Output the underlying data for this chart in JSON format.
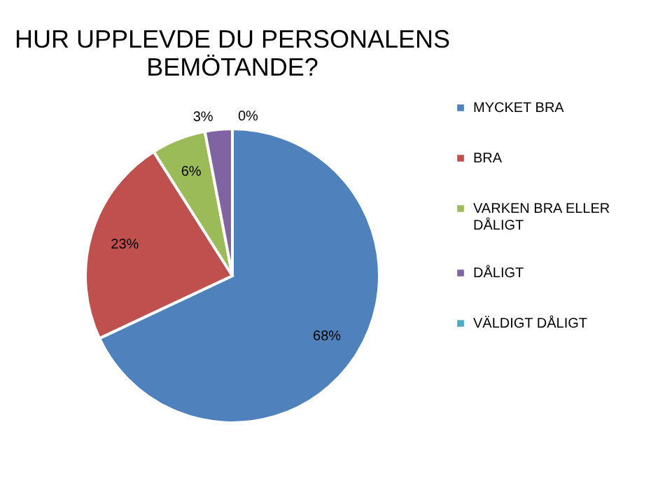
{
  "chart_data": {
    "type": "pie",
    "title": "HUR UPPLEVDE DU PERSONALENS BEMÖTANDE?",
    "categories": [
      "MYCKET BRA",
      "BRA",
      "VARKEN BRA ELLER DÅLIGT",
      "DÅLIGT",
      "VÄLDIGT DÅLIGT"
    ],
    "values": [
      68,
      23,
      6,
      3,
      0
    ],
    "colors": [
      "#4f81bd",
      "#c0504d",
      "#9bbb59",
      "#8064a2",
      "#4bacc6"
    ],
    "value_labels": [
      "68%",
      "23%",
      "6%",
      "3%",
      "0%"
    ],
    "legend": "right"
  }
}
